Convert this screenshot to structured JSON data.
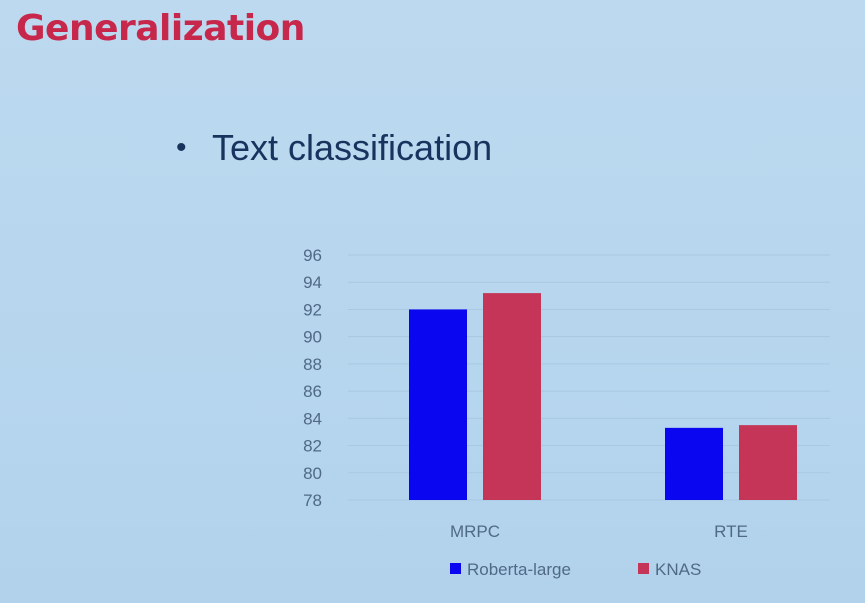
{
  "slide": {
    "title": "Generalization",
    "bullet": "Text classification"
  },
  "colors": {
    "title": "#c6274b",
    "bullet": "#17345f",
    "roberta": "#0b06f0",
    "knas": "#c43558"
  },
  "chart_data": {
    "type": "bar",
    "categories": [
      "MRPC",
      "RTE"
    ],
    "series": [
      {
        "name": "Roberta-large",
        "values": [
          92.0,
          83.3
        ]
      },
      {
        "name": "KNAS",
        "values": [
          93.2,
          83.5
        ]
      }
    ],
    "ylim": [
      78,
      96
    ],
    "yticks": [
      96,
      94,
      92,
      90,
      88,
      86,
      84,
      82,
      80,
      78
    ],
    "grid": true,
    "legend_position": "bottom"
  }
}
